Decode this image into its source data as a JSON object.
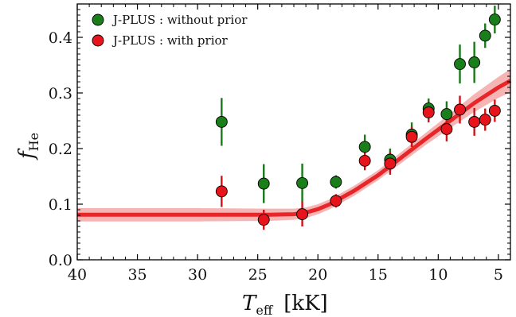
{
  "chart_data": {
    "type": "scatter",
    "xlabel": {
      "main": "T",
      "sub": "eff",
      "unit": "[kK]"
    },
    "ylabel": {
      "main": "f",
      "sub": "He"
    },
    "xlim": [
      40,
      4
    ],
    "ylim": [
      0.0,
      0.46
    ],
    "x_reversed": true,
    "xticks": [
      40,
      35,
      30,
      25,
      20,
      15,
      10,
      5
    ],
    "yticks": [
      0.0,
      0.1,
      0.2,
      0.3,
      0.4
    ],
    "ytick_labels": [
      "0.0",
      "0.1",
      "0.2",
      "0.3",
      "0.4"
    ],
    "grid": false,
    "legend_position": "top-left",
    "series": [
      {
        "name": "J-PLUS : without prior",
        "color": "#1a7f1a",
        "errorbar_color": "#1a7a1a",
        "points": [
          {
            "x": 28.0,
            "y": 0.248,
            "err": 0.043
          },
          {
            "x": 24.5,
            "y": 0.137,
            "err": 0.035
          },
          {
            "x": 21.3,
            "y": 0.138,
            "err": 0.035
          },
          {
            "x": 18.5,
            "y": 0.14,
            "err": 0.012
          },
          {
            "x": 16.1,
            "y": 0.203,
            "err": 0.022
          },
          {
            "x": 14.0,
            "y": 0.18,
            "err": 0.02
          },
          {
            "x": 12.2,
            "y": 0.225,
            "err": 0.022
          },
          {
            "x": 10.8,
            "y": 0.272,
            "err": 0.018
          },
          {
            "x": 9.3,
            "y": 0.262,
            "err": 0.023
          },
          {
            "x": 8.2,
            "y": 0.352,
            "err": 0.035
          },
          {
            "x": 7.0,
            "y": 0.355,
            "err": 0.037
          },
          {
            "x": 6.1,
            "y": 0.403,
            "err": 0.022
          },
          {
            "x": 5.3,
            "y": 0.432,
            "err": 0.025
          }
        ]
      },
      {
        "name": "J-PLUS : with prior",
        "color": "#e8141c",
        "errorbar_color": "#d01218",
        "points": [
          {
            "x": 28.0,
            "y": 0.123,
            "err": 0.028
          },
          {
            "x": 24.5,
            "y": 0.072,
            "err": 0.018
          },
          {
            "x": 21.3,
            "y": 0.082,
            "err": 0.022
          },
          {
            "x": 18.5,
            "y": 0.106,
            "err": 0.012
          },
          {
            "x": 16.1,
            "y": 0.178,
            "err": 0.017
          },
          {
            "x": 14.0,
            "y": 0.173,
            "err": 0.02
          },
          {
            "x": 12.2,
            "y": 0.221,
            "err": 0.018
          },
          {
            "x": 10.8,
            "y": 0.265,
            "err": 0.018
          },
          {
            "x": 9.3,
            "y": 0.235,
            "err": 0.022
          },
          {
            "x": 8.2,
            "y": 0.27,
            "err": 0.025
          },
          {
            "x": 7.0,
            "y": 0.248,
            "err": 0.025
          },
          {
            "x": 6.1,
            "y": 0.252,
            "err": 0.02
          },
          {
            "x": 5.3,
            "y": 0.268,
            "err": 0.02
          }
        ]
      }
    ],
    "fit_line": {
      "color": "#e8262a",
      "band_color": "#f6b5b5",
      "points": [
        {
          "x": 40.0,
          "y": 0.081,
          "lo": 0.069,
          "hi": 0.093
        },
        {
          "x": 30.0,
          "y": 0.081,
          "lo": 0.069,
          "hi": 0.093
        },
        {
          "x": 24.0,
          "y": 0.081,
          "lo": 0.07,
          "hi": 0.092
        },
        {
          "x": 22.0,
          "y": 0.082,
          "lo": 0.072,
          "hi": 0.092
        },
        {
          "x": 21.0,
          "y": 0.085,
          "lo": 0.075,
          "hi": 0.094
        },
        {
          "x": 20.0,
          "y": 0.091,
          "lo": 0.082,
          "hi": 0.1
        },
        {
          "x": 19.0,
          "y": 0.1,
          "lo": 0.091,
          "hi": 0.109
        },
        {
          "x": 17.0,
          "y": 0.124,
          "lo": 0.115,
          "hi": 0.133
        },
        {
          "x": 15.0,
          "y": 0.152,
          "lo": 0.143,
          "hi": 0.161
        },
        {
          "x": 13.0,
          "y": 0.185,
          "lo": 0.175,
          "hi": 0.195
        },
        {
          "x": 11.0,
          "y": 0.218,
          "lo": 0.207,
          "hi": 0.229
        },
        {
          "x": 9.0,
          "y": 0.25,
          "lo": 0.237,
          "hi": 0.263
        },
        {
          "x": 7.0,
          "y": 0.282,
          "lo": 0.266,
          "hi": 0.298
        },
        {
          "x": 5.0,
          "y": 0.31,
          "lo": 0.291,
          "hi": 0.329
        },
        {
          "x": 4.0,
          "y": 0.322,
          "lo": 0.301,
          "hi": 0.343
        }
      ]
    }
  }
}
